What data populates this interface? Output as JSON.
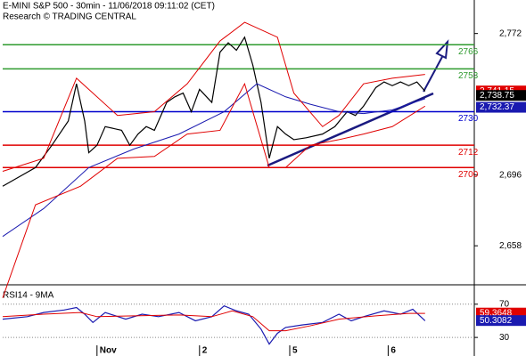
{
  "chart_data": [
    {
      "type": "line",
      "title": "E-MINI S&P 500 - 30min - 11/06/2018 09:11:02 (CET)",
      "subtitle": "Research © TRADING CENTRAL",
      "xlim": [
        0,
        115
      ],
      "ylim": [
        2638,
        2790
      ],
      "yticks": [
        {
          "value": 2772,
          "label": "2,772"
        },
        {
          "value": 2696,
          "label": "2,696"
        },
        {
          "value": 2658,
          "label": "2,658"
        }
      ],
      "series": [
        {
          "color": "#000000",
          "x": [
            0,
            4,
            8,
            12,
            16,
            18,
            20,
            21,
            23,
            25,
            29,
            31,
            33,
            35,
            37,
            40,
            42,
            44,
            46,
            48,
            51,
            53,
            55,
            57,
            59,
            61,
            63,
            65,
            67,
            69,
            71,
            74,
            78,
            81,
            84,
            86,
            88,
            91,
            93,
            95,
            97,
            99,
            101,
            103
          ],
          "values": [
            2690,
            2695,
            2700,
            2712,
            2725,
            2745,
            2725,
            2708,
            2712,
            2722,
            2720,
            2712,
            2718,
            2722,
            2720,
            2735,
            2738,
            2740,
            2730,
            2742,
            2735,
            2762,
            2767,
            2763,
            2770,
            2755,
            2735,
            2705,
            2722,
            2718,
            2715,
            2716,
            2718,
            2722,
            2730,
            2728,
            2733,
            2743,
            2746,
            2744,
            2746,
            2744,
            2746,
            2741
          ]
        },
        {
          "color": "#1a1ab0",
          "x": [
            0,
            10,
            21,
            32,
            43,
            54,
            62,
            69,
            75,
            82,
            88,
            95,
            103
          ],
          "values": [
            2663,
            2678,
            2700,
            2710,
            2718,
            2730,
            2745,
            2738,
            2734,
            2730,
            2729,
            2731,
            2737
          ]
        },
        {
          "color": "#e00000",
          "x": [
            0,
            10,
            18,
            28,
            37,
            45,
            53,
            59,
            67,
            71,
            78,
            82,
            88,
            95,
            103
          ],
          "values": [
            2698,
            2705,
            2748,
            2728,
            2730,
            2745,
            2768,
            2778,
            2770,
            2740,
            2722,
            2728,
            2745,
            2748,
            2750
          ]
        },
        {
          "color": "#e00000",
          "x": [
            0,
            8,
            19,
            28,
            37,
            45,
            53,
            59,
            65,
            69,
            75,
            82,
            88,
            95,
            103
          ],
          "values": [
            2630,
            2680,
            2690,
            2705,
            2706,
            2718,
            2720,
            2745,
            2700,
            2700,
            2712,
            2715,
            2718,
            2722,
            2733
          ]
        }
      ],
      "levels": [
        {
          "value": 2766,
          "color": "#2e9a2e"
        },
        {
          "value": 2753,
          "color": "#2e9a2e"
        },
        {
          "value": 2730,
          "color": "#0000cc"
        },
        {
          "value": 2712,
          "color": "#e00000"
        },
        {
          "value": 2700,
          "color": "#e00000"
        }
      ],
      "price_labels": [
        {
          "value": 2741.15,
          "label": "2,741.15",
          "color": "#e00000"
        },
        {
          "value": 2738.75,
          "label": "2,738.75",
          "color": "#000000"
        },
        {
          "value": 2732.37,
          "label": "2,732.37",
          "color": "#1a1ab0"
        }
      ]
    },
    {
      "type": "line",
      "title": "RSI14 - 9MA",
      "xlim": [
        0,
        115
      ],
      "ylim": [
        13,
        88
      ],
      "yticks": [
        30,
        70
      ],
      "xticks": [
        {
          "value": 23,
          "label": "Nov"
        },
        {
          "value": 48,
          "label": "2"
        },
        {
          "value": 70,
          "label": "5"
        },
        {
          "value": 94,
          "label": "6"
        }
      ],
      "series": [
        {
          "color": "#1a1ab0",
          "x": [
            0,
            6,
            10,
            15,
            18,
            20,
            22,
            25,
            30,
            34,
            38,
            43,
            47,
            51,
            54,
            57,
            60,
            63,
            65,
            67,
            69,
            73,
            78,
            82,
            85,
            88,
            93,
            97,
            100,
            103
          ],
          "values": [
            52,
            55,
            60,
            63,
            66,
            58,
            48,
            60,
            52,
            58,
            55,
            60,
            50,
            55,
            68,
            62,
            58,
            40,
            22,
            35,
            42,
            45,
            48,
            58,
            50,
            55,
            62,
            58,
            64,
            50
          ]
        },
        {
          "color": "#e00000",
          "x": [
            0,
            10,
            19,
            23,
            32,
            43,
            51,
            56,
            61,
            65,
            69,
            75,
            82,
            91,
            99,
            103
          ],
          "values": [
            55,
            58,
            60,
            55,
            56,
            57,
            55,
            62,
            55,
            38,
            38,
            44,
            52,
            56,
            59,
            59
          ]
        }
      ],
      "price_labels": [
        {
          "value": 59.3648,
          "label": "59.3648",
          "color": "#e00000"
        },
        {
          "value": 50.3082,
          "label": "50.3082",
          "color": "#1a1ab0"
        }
      ]
    }
  ]
}
